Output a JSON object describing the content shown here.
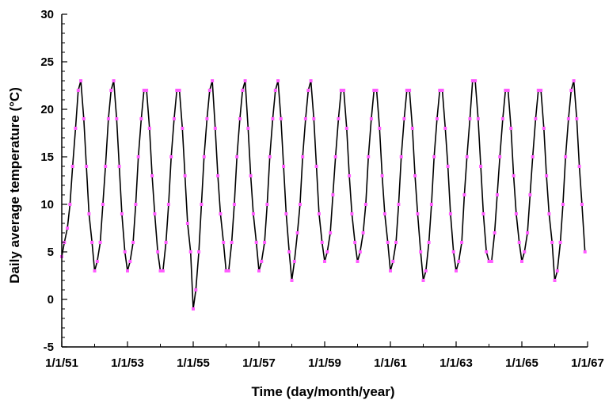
{
  "chart_data": {
    "type": "line",
    "title": "",
    "xlabel": "Time (day/month/year)",
    "ylabel": "Daily average temperature (°C)",
    "ylim": [
      -5,
      30
    ],
    "y_ticks": [
      "-5",
      "0",
      "5",
      "10",
      "15",
      "20",
      "25",
      "30"
    ],
    "xlim": [
      "1/1/51",
      "1/1/67"
    ],
    "x_ticks": [
      "1/1/51",
      "1/1/53",
      "1/1/55",
      "1/1/57",
      "1/1/59",
      "1/1/61",
      "1/1/63",
      "1/1/65",
      "1/1/67"
    ],
    "grid": false,
    "legend": "none",
    "line_color": "#000000",
    "marker_color": "#ff5cff",
    "series": [
      {
        "x_unit": "year (monthly approximation)",
        "x": [
          1951.0,
          1951.08,
          1951.17,
          1951.25,
          1951.33,
          1951.42,
          1951.5,
          1951.58,
          1951.67,
          1951.75,
          1951.83,
          1951.92,
          1952.0,
          1952.08,
          1952.17,
          1952.25,
          1952.33,
          1952.42,
          1952.5,
          1952.58,
          1952.67,
          1952.75,
          1952.83,
          1952.92,
          1953.0,
          1953.08,
          1953.17,
          1953.25,
          1953.33,
          1953.42,
          1953.5,
          1953.58,
          1953.67,
          1953.75,
          1953.83,
          1953.92,
          1954.0,
          1954.08,
          1954.17,
          1954.25,
          1954.33,
          1954.42,
          1954.5,
          1954.58,
          1954.67,
          1954.75,
          1954.83,
          1954.92,
          1955.0,
          1955.08,
          1955.17,
          1955.25,
          1955.33,
          1955.42,
          1955.5,
          1955.58,
          1955.67,
          1955.75,
          1955.83,
          1955.92,
          1956.0,
          1956.08,
          1956.17,
          1956.25,
          1956.33,
          1956.42,
          1956.5,
          1956.58,
          1956.67,
          1956.75,
          1956.83,
          1956.92,
          1957.0,
          1957.08,
          1957.17,
          1957.25,
          1957.33,
          1957.42,
          1957.5,
          1957.58,
          1957.67,
          1957.75,
          1957.83,
          1957.92,
          1958.0,
          1958.08,
          1958.17,
          1958.25,
          1958.33,
          1958.42,
          1958.5,
          1958.58,
          1958.67,
          1958.75,
          1958.83,
          1958.92,
          1959.0,
          1959.08,
          1959.17,
          1959.25,
          1959.33,
          1959.42,
          1959.5,
          1959.58,
          1959.67,
          1959.75,
          1959.83,
          1959.92,
          1960.0,
          1960.08,
          1960.17,
          1960.25,
          1960.33,
          1960.42,
          1960.5,
          1960.58,
          1960.67,
          1960.75,
          1960.83,
          1960.92,
          1961.0,
          1961.08,
          1961.17,
          1961.25,
          1961.33,
          1961.42,
          1961.5,
          1961.58,
          1961.67,
          1961.75,
          1961.83,
          1961.92,
          1962.0,
          1962.08,
          1962.17,
          1962.25,
          1962.33,
          1962.42,
          1962.5,
          1962.58,
          1962.67,
          1962.75,
          1962.83,
          1962.92,
          1963.0,
          1963.08,
          1963.17,
          1963.25,
          1963.33,
          1963.42,
          1963.5,
          1963.58,
          1963.67,
          1963.75,
          1963.83,
          1963.92,
          1964.0,
          1964.08,
          1964.17,
          1964.25,
          1964.33,
          1964.42,
          1964.5,
          1964.58,
          1964.67,
          1964.75,
          1964.83,
          1964.92,
          1965.0,
          1965.08,
          1965.17,
          1965.25,
          1965.33,
          1965.42,
          1965.5,
          1965.58,
          1965.67,
          1965.75,
          1965.83,
          1965.92,
          1966.0,
          1966.08,
          1966.17,
          1966.25,
          1966.33,
          1966.42,
          1966.5,
          1966.58,
          1966.67,
          1966.75,
          1966.83,
          1966.92
        ],
        "y": [
          4.5,
          6,
          7.5,
          10,
          14,
          18,
          22,
          23,
          19,
          14,
          9,
          6,
          3,
          4,
          6,
          10,
          14,
          19,
          22,
          23,
          19,
          14,
          9,
          5,
          3,
          4,
          6,
          10,
          15,
          19,
          22,
          22,
          18,
          13,
          9,
          5,
          3,
          3,
          6,
          10,
          15,
          19,
          22,
          22,
          18,
          13,
          8,
          5,
          -1,
          1,
          5,
          10,
          15,
          19,
          22,
          23,
          18,
          13,
          9,
          6,
          3,
          3,
          6,
          10,
          15,
          19,
          22,
          23,
          18,
          13,
          9,
          6,
          3,
          4,
          6,
          10,
          15,
          19,
          22,
          23,
          19,
          14,
          9,
          5,
          2,
          4,
          7,
          10,
          15,
          19,
          22,
          23,
          19,
          14,
          9,
          6,
          4,
          5,
          7,
          11,
          15,
          19,
          22,
          22,
          18,
          13,
          9,
          6,
          4,
          5,
          7,
          10,
          15,
          19,
          22,
          22,
          18,
          13,
          9,
          6,
          3,
          4,
          6,
          10,
          15,
          19,
          22,
          22,
          18,
          13,
          9,
          5,
          2,
          3,
          6,
          10,
          15,
          19,
          22,
          22,
          18,
          14,
          9,
          5,
          3,
          4,
          6,
          11,
          15,
          19,
          23,
          23,
          19,
          14,
          9,
          5,
          4,
          4,
          7,
          11,
          15,
          19,
          22,
          22,
          18,
          13,
          9,
          6,
          4,
          5,
          7,
          11,
          15,
          19,
          22,
          22,
          18,
          13,
          9,
          6,
          2,
          3,
          6,
          10,
          15,
          19,
          22,
          23,
          19,
          14,
          10,
          5
        ]
      }
    ]
  }
}
